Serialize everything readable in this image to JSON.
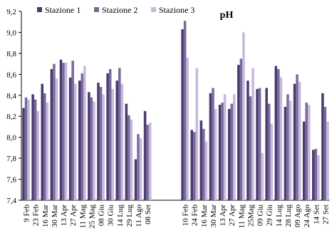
{
  "chart_data": {
    "type": "bar",
    "title": "pH",
    "categories": [
      "9 Feb",
      "23 Feb",
      "16 Mar",
      "30 Mar",
      "13 Apr",
      "27 Apr",
      "11 Mag",
      "25 Mag",
      "08 Giu",
      "30 Giu",
      "14 Lug",
      "29 Lug",
      "11 Ago",
      "08 Set",
      null,
      null,
      null,
      "10 Feb",
      "24 Feb",
      "16 Mar",
      "30 Mar",
      "13 Apr",
      "27 Apr",
      "11 Mag",
      "25Mag",
      "09 Giu",
      "29 Giu",
      "14 Lug",
      "28 Lug",
      "09 Ago",
      "24 Ago",
      "14 Set",
      "27 Set"
    ],
    "series": [
      {
        "name": "Stazione 1",
        "color": "#4b3a6e",
        "values": [
          8.28,
          8.41,
          8.51,
          8.65,
          8.74,
          8.57,
          8.54,
          8.43,
          8.52,
          8.61,
          8.54,
          8.32,
          7.79,
          8.25,
          null,
          null,
          null,
          9.03,
          8.07,
          8.16,
          8.42,
          8.31,
          8.27,
          8.69,
          8.54,
          8.46,
          8.47,
          8.68,
          8.29,
          8.51,
          8.15,
          7.88,
          8.42
        ]
      },
      {
        "name": "Stazione 2",
        "color": "#7a6a9c",
        "values": [
          8.38,
          8.36,
          8.42,
          8.7,
          8.71,
          8.73,
          8.61,
          8.38,
          8.48,
          8.65,
          8.66,
          8.21,
          8.03,
          8.12,
          null,
          null,
          null,
          9.11,
          8.05,
          8.08,
          8.47,
          8.33,
          8.32,
          8.75,
          8.39,
          8.47,
          8.32,
          8.65,
          8.41,
          8.6,
          8.33,
          7.89,
          8.29
        ]
      },
      {
        "name": "Stazione 3",
        "color": "#c5b9de",
        "values": [
          8.36,
          8.25,
          8.33,
          8.56,
          8.71,
          8.51,
          8.68,
          8.34,
          8.41,
          8.46,
          8.51,
          8.17,
          7.99,
          8.14,
          null,
          null,
          null,
          8.76,
          8.66,
          7.96,
          8.27,
          8.41,
          8.41,
          9.0,
          8.66,
          7.85,
          8.13,
          8.57,
          8.35,
          8.53,
          8.31,
          7.83,
          8.15
        ]
      }
    ],
    "ylim": [
      7.4,
      9.2
    ],
    "yticks": [
      {
        "value": 7.4,
        "label": "7,4"
      },
      {
        "value": 7.6,
        "label": "7,6"
      },
      {
        "value": 7.8,
        "label": "7,8"
      },
      {
        "value": 8.0,
        "label": "8,0"
      },
      {
        "value": 8.2,
        "label": "8,2"
      },
      {
        "value": 8.4,
        "label": "8,4"
      },
      {
        "value": 8.6,
        "label": "8,6"
      },
      {
        "value": 8.8,
        "label": "8,8"
      },
      {
        "value": 9.0,
        "label": "9,0"
      },
      {
        "value": 9.2,
        "label": "9,2"
      }
    ]
  }
}
